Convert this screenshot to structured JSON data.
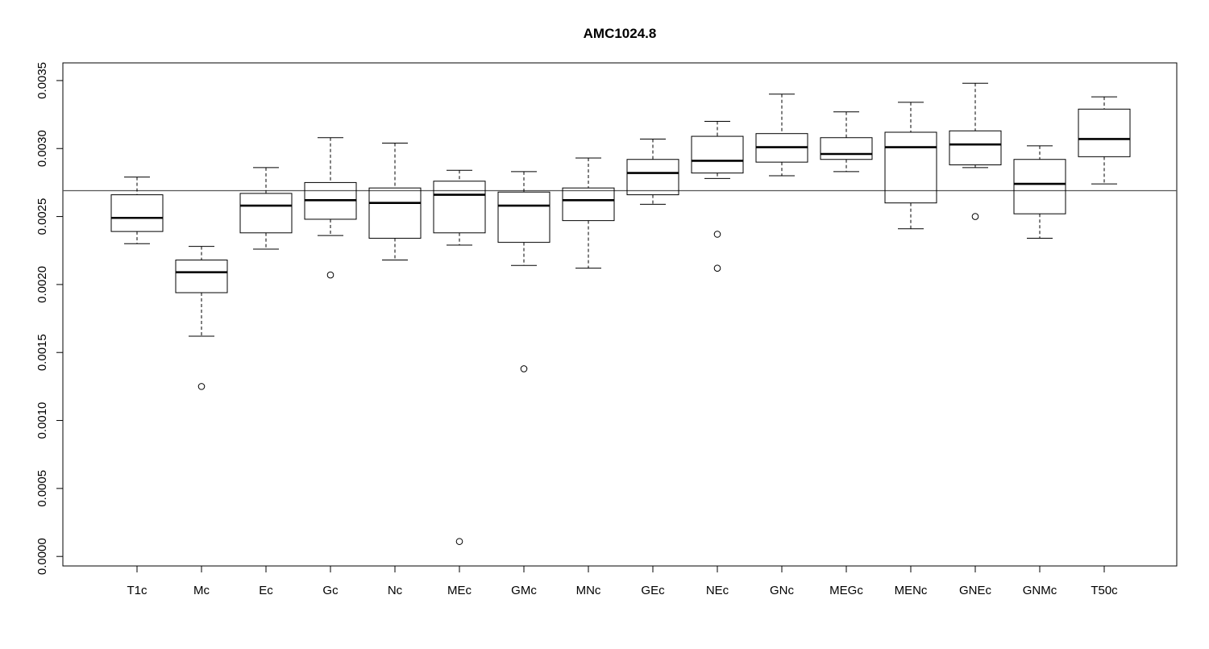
{
  "chart_data": {
    "type": "boxplot",
    "title": "AMC1024.8",
    "xlabel": "",
    "ylabel": "",
    "ylim": [
      -7e-05,
      0.00363
    ],
    "yticks": [
      "0.0000",
      "0.0005",
      "0.0010",
      "0.0015",
      "0.0020",
      "0.0025",
      "0.0030",
      "0.0035"
    ],
    "reference_line": 0.00269,
    "grid": false,
    "categories": [
      "T1c",
      "Mc",
      "Ec",
      "Gc",
      "Nc",
      "MEc",
      "GMc",
      "MNc",
      "GEc",
      "NEc",
      "GNc",
      "MEGc",
      "MENc",
      "GNEc",
      "GNMc",
      "T50c"
    ],
    "boxes": [
      {
        "lower_whisker": 0.0023,
        "q1": 0.00239,
        "median": 0.00249,
        "q3": 0.00266,
        "upper_whisker": 0.00279,
        "outliers": []
      },
      {
        "lower_whisker": 0.00162,
        "q1": 0.00194,
        "median": 0.00209,
        "q3": 0.00218,
        "upper_whisker": 0.00228,
        "outliers": [
          0.00125
        ]
      },
      {
        "lower_whisker": 0.00226,
        "q1": 0.00238,
        "median": 0.00258,
        "q3": 0.00267,
        "upper_whisker": 0.00286,
        "outliers": []
      },
      {
        "lower_whisker": 0.00236,
        "q1": 0.00248,
        "median": 0.00262,
        "q3": 0.00275,
        "upper_whisker": 0.00308,
        "outliers": [
          0.00207
        ]
      },
      {
        "lower_whisker": 0.00218,
        "q1": 0.00234,
        "median": 0.0026,
        "q3": 0.00271,
        "upper_whisker": 0.00304,
        "outliers": []
      },
      {
        "lower_whisker": 0.00229,
        "q1": 0.00238,
        "median": 0.00266,
        "q3": 0.00276,
        "upper_whisker": 0.00284,
        "outliers": [
          0.00011
        ]
      },
      {
        "lower_whisker": 0.00214,
        "q1": 0.00231,
        "median": 0.00258,
        "q3": 0.00268,
        "upper_whisker": 0.00283,
        "outliers": [
          0.00138
        ]
      },
      {
        "lower_whisker": 0.00212,
        "q1": 0.00247,
        "median": 0.00262,
        "q3": 0.00271,
        "upper_whisker": 0.00293,
        "outliers": []
      },
      {
        "lower_whisker": 0.00259,
        "q1": 0.00266,
        "median": 0.00282,
        "q3": 0.00292,
        "upper_whisker": 0.00307,
        "outliers": []
      },
      {
        "lower_whisker": 0.00278,
        "q1": 0.00282,
        "median": 0.00291,
        "q3": 0.00309,
        "upper_whisker": 0.0032,
        "outliers": [
          0.00237,
          0.00212
        ]
      },
      {
        "lower_whisker": 0.0028,
        "q1": 0.0029,
        "median": 0.00301,
        "q3": 0.00311,
        "upper_whisker": 0.0034,
        "outliers": []
      },
      {
        "lower_whisker": 0.00283,
        "q1": 0.00292,
        "median": 0.00296,
        "q3": 0.00308,
        "upper_whisker": 0.00327,
        "outliers": []
      },
      {
        "lower_whisker": 0.00241,
        "q1": 0.0026,
        "median": 0.00301,
        "q3": 0.00312,
        "upper_whisker": 0.00334,
        "outliers": []
      },
      {
        "lower_whisker": 0.00286,
        "q1": 0.00288,
        "median": 0.00303,
        "q3": 0.00313,
        "upper_whisker": 0.00348,
        "outliers": [
          0.0025
        ]
      },
      {
        "lower_whisker": 0.00234,
        "q1": 0.00252,
        "median": 0.00274,
        "q3": 0.00292,
        "upper_whisker": 0.00302,
        "outliers": []
      },
      {
        "lower_whisker": 0.00274,
        "q1": 0.00294,
        "median": 0.00307,
        "q3": 0.00329,
        "upper_whisker": 0.00338,
        "outliers": []
      }
    ]
  }
}
